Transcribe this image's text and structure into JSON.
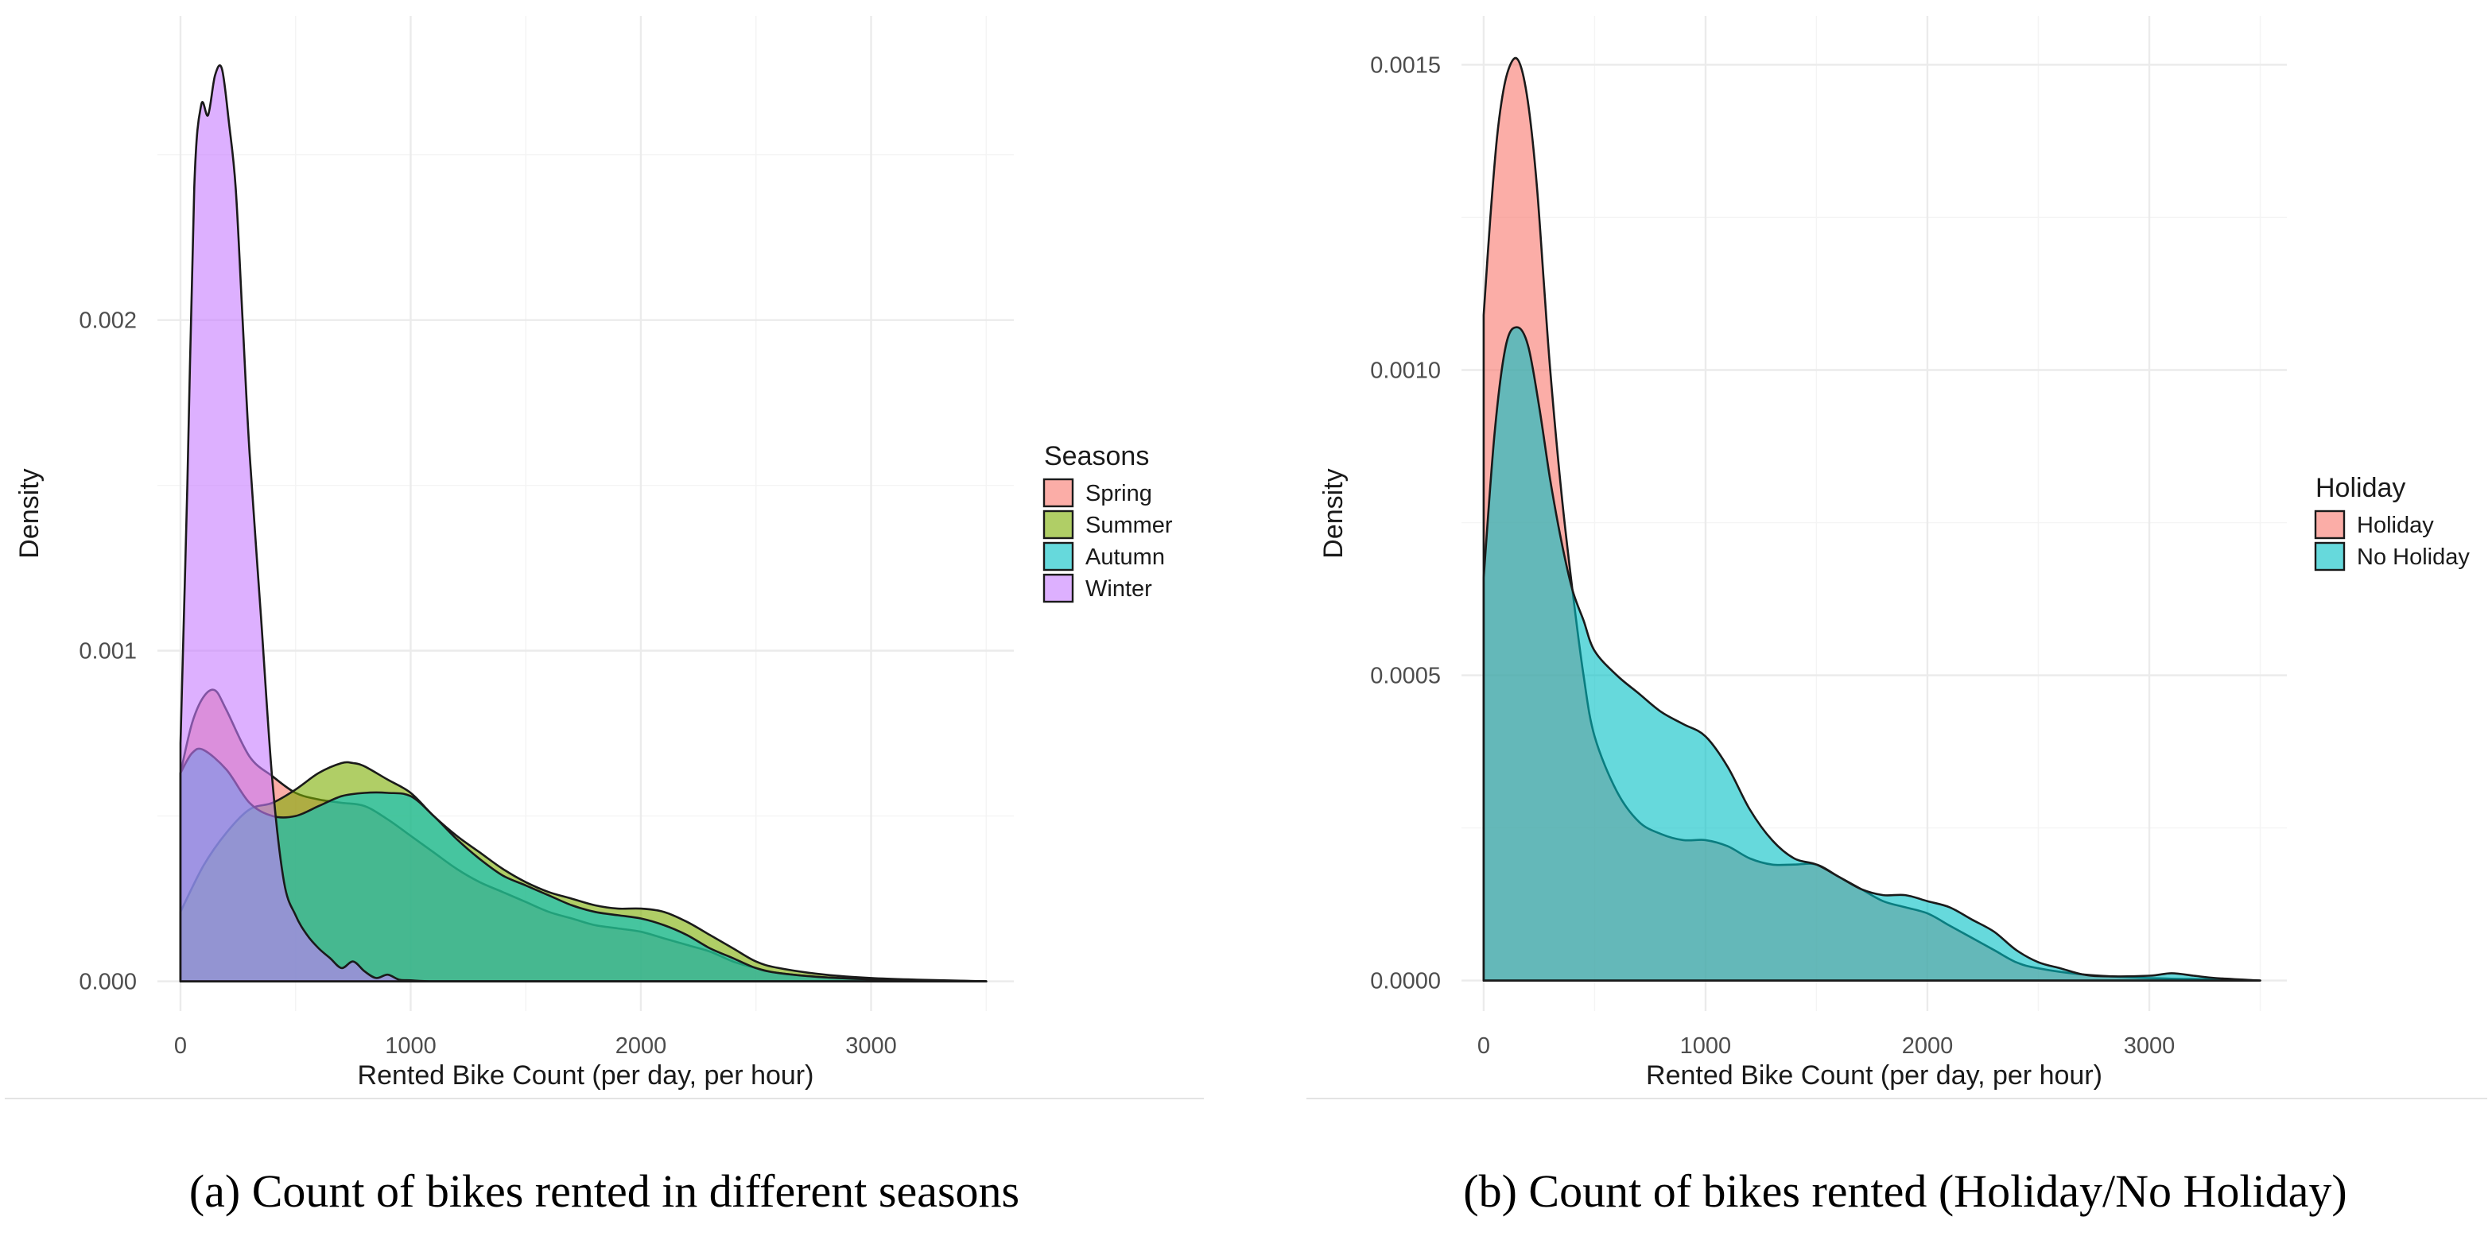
{
  "colors": {
    "spring": "#F8766D",
    "summer": "#7CAE00",
    "autumn": "#00BFC4",
    "winter": "#C77CFF",
    "holiday": "#F8766D",
    "no_holiday": "#00BFC4",
    "grid": "#ebebeb"
  },
  "chart_data": [
    {
      "type": "area",
      "subtype": "density",
      "caption": "(a) Count of bikes rented in different seasons",
      "xlabel": "Rented Bike Count (per day, per hour)",
      "ylabel": "Density",
      "xlim": [
        -100,
        3620
      ],
      "ylim": [
        -9e-05,
        0.00292
      ],
      "xticks": [
        0,
        1000,
        2000,
        3000
      ],
      "xtick_labels": [
        "0",
        "1000",
        "2000",
        "3000"
      ],
      "yticks": [
        0,
        0.001,
        0.002
      ],
      "ytick_labels": [
        "0.000",
        "0.001",
        "0.002"
      ],
      "legend_title": "Seasons",
      "legend_position": "right",
      "grid": true,
      "series": [
        {
          "name": "Spring",
          "color_key": "spring",
          "x": [
            0,
            50,
            100,
            150,
            200,
            300,
            400,
            500,
            600,
            700,
            800,
            900,
            1000,
            1100,
            1200,
            1300,
            1400,
            1500,
            1600,
            1700,
            1800,
            1900,
            2000,
            2100,
            2200,
            2300,
            2400,
            2500,
            2600,
            2800,
            3000,
            3200,
            3500
          ],
          "y": [
            0.00063,
            0.00078,
            0.00086,
            0.00088,
            0.00082,
            0.00068,
            0.00062,
            0.00057,
            0.00055,
            0.00054,
            0.00053,
            0.00049,
            0.00044,
            0.00039,
            0.00034,
            0.0003,
            0.00027,
            0.00024,
            0.00021,
            0.00019,
            0.00017,
            0.00016,
            0.00015,
            0.00013,
            0.00011,
            9e-05,
            6e-05,
            4e-05,
            2.5e-05,
            1.2e-05,
            6e-06,
            3e-06,
            0.0
          ]
        },
        {
          "name": "Summer",
          "color_key": "summer",
          "x": [
            0,
            100,
            200,
            300,
            400,
            500,
            600,
            700,
            750,
            800,
            900,
            1000,
            1100,
            1200,
            1300,
            1400,
            1500,
            1600,
            1700,
            1800,
            1900,
            2000,
            2100,
            2200,
            2300,
            2400,
            2500,
            2600,
            2800,
            3000,
            3200,
            3500
          ],
          "y": [
            0.00021,
            0.00035,
            0.00045,
            0.00052,
            0.00054,
            0.00058,
            0.00063,
            0.00066,
            0.00066,
            0.00065,
            0.00061,
            0.00057,
            0.0005,
            0.00044,
            0.00039,
            0.00034,
            0.0003,
            0.00027,
            0.00025,
            0.00023,
            0.00022,
            0.00022,
            0.00021,
            0.00018,
            0.00014,
            0.0001,
            6e-05,
            4e-05,
            2e-05,
            1e-05,
            5e-06,
            0.0
          ]
        },
        {
          "name": "Autumn",
          "color_key": "autumn",
          "x": [
            0,
            50,
            100,
            200,
            300,
            400,
            500,
            600,
            700,
            800,
            900,
            1000,
            1100,
            1200,
            1300,
            1400,
            1500,
            1600,
            1700,
            1800,
            1900,
            2000,
            2100,
            2200,
            2300,
            2400,
            2500,
            2600,
            2800,
            3000,
            3200,
            3500
          ],
          "y": [
            0.00063,
            0.00069,
            0.0007,
            0.00064,
            0.00054,
            0.0005,
            0.0005,
            0.00053,
            0.00056,
            0.00057,
            0.00057,
            0.00056,
            0.0005,
            0.00043,
            0.00037,
            0.00032,
            0.00029,
            0.00026,
            0.00023,
            0.00021,
            0.0002,
            0.00019,
            0.00017,
            0.00014,
            0.0001,
            7e-05,
            4e-05,
            2.5e-05,
            1.2e-05,
            6e-06,
            3e-06,
            0.0
          ]
        },
        {
          "name": "Winter",
          "color_key": "winter",
          "x": [
            0,
            30,
            60,
            90,
            120,
            150,
            180,
            210,
            240,
            270,
            300,
            350,
            400,
            450,
            500,
            550,
            600,
            650,
            700,
            750,
            800,
            850,
            900,
            950,
            1000,
            1100,
            1300,
            1600,
            2000,
            3500
          ],
          "y": [
            0.00072,
            0.0015,
            0.0024,
            0.00265,
            0.00262,
            0.00274,
            0.00276,
            0.0026,
            0.0024,
            0.002,
            0.0016,
            0.0011,
            0.0006,
            0.0003,
            0.0002,
            0.00014,
            0.0001,
            7e-05,
            4e-05,
            6e-05,
            3e-05,
            1e-05,
            2e-05,
            5e-06,
            3e-06,
            0.0,
            0.0,
            0.0,
            0.0,
            0.0
          ]
        }
      ]
    },
    {
      "type": "area",
      "subtype": "density",
      "caption": "(b) Count of bikes rented (Holiday/No Holiday)",
      "xlabel": "Rented Bike Count (per day, per hour)",
      "ylabel": "Density",
      "xlim": [
        -100,
        3620
      ],
      "ylim": [
        -5e-05,
        0.00158
      ],
      "xticks": [
        0,
        1000,
        2000,
        3000
      ],
      "xtick_labels": [
        "0",
        "1000",
        "2000",
        "3000"
      ],
      "yticks": [
        0,
        0.0005,
        0.001,
        0.0015
      ],
      "ytick_labels": [
        "0.0000",
        "0.0005",
        "0.0010",
        "0.0015"
      ],
      "legend_title": "Holiday",
      "legend_position": "right",
      "grid": true,
      "series": [
        {
          "name": "Holiday",
          "color_key": "holiday",
          "x": [
            0,
            30,
            60,
            90,
            120,
            150,
            180,
            210,
            240,
            270,
            300,
            350,
            400,
            450,
            500,
            600,
            700,
            800,
            900,
            1000,
            1100,
            1200,
            1300,
            1400,
            1500,
            1600,
            1700,
            1800,
            1900,
            2000,
            2100,
            2200,
            2300,
            2400,
            2500,
            2700,
            3000,
            3300,
            3500
          ],
          "y": [
            0.00109,
            0.00125,
            0.00138,
            0.00146,
            0.0015,
            0.00151,
            0.00148,
            0.00141,
            0.0013,
            0.00115,
            0.001,
            0.0008,
            0.00064,
            0.0005,
            0.0004,
            0.00031,
            0.00026,
            0.00024,
            0.00023,
            0.00023,
            0.00022,
            0.0002,
            0.00019,
            0.00019,
            0.00019,
            0.00017,
            0.00015,
            0.00013,
            0.00012,
            0.00011,
            9e-05,
            7e-05,
            5e-05,
            3e-05,
            2e-05,
            1e-05,
            4e-06,
            2e-06,
            0.0
          ]
        },
        {
          "name": "No Holiday",
          "color_key": "no_holiday",
          "x": [
            0,
            50,
            100,
            150,
            200,
            250,
            300,
            350,
            400,
            450,
            500,
            600,
            700,
            800,
            900,
            1000,
            1100,
            1200,
            1300,
            1400,
            1500,
            1600,
            1700,
            1800,
            1900,
            2000,
            2100,
            2200,
            2300,
            2400,
            2500,
            2600,
            2700,
            2800,
            3000,
            3100,
            3200,
            3300,
            3500
          ],
          "y": [
            0.00066,
            0.0009,
            0.00104,
            0.00107,
            0.00104,
            0.00094,
            0.00082,
            0.00072,
            0.00064,
            0.00059,
            0.00054,
            0.0005,
            0.00047,
            0.00044,
            0.00042,
            0.0004,
            0.00035,
            0.00028,
            0.00023,
            0.0002,
            0.00019,
            0.00017,
            0.00015,
            0.00014,
            0.00014,
            0.00013,
            0.00012,
            0.0001,
            8e-05,
            5e-05,
            3e-05,
            2e-05,
            1e-05,
            7e-06,
            8e-06,
            1.2e-05,
            8e-06,
            4e-06,
            0.0
          ]
        }
      ]
    }
  ]
}
